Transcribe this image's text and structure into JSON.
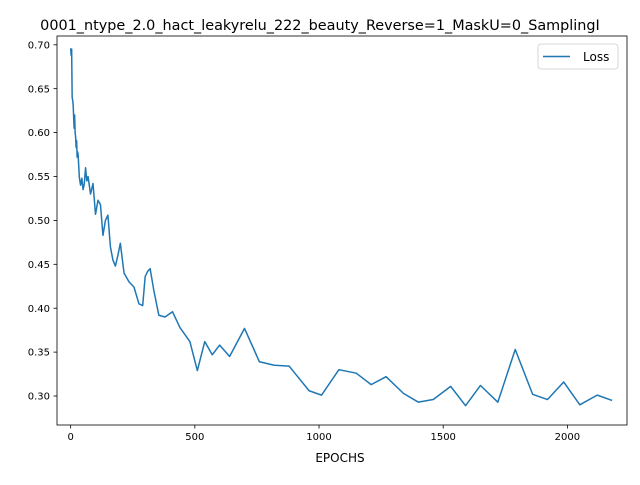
{
  "chart_data": {
    "type": "line",
    "title": "0001_ntype_2.0_hact_leakyrelu_222_beauty_Reverse=1_MaskU=0_SamplingI",
    "xlabel": "EPOCHS",
    "ylabel": "",
    "xlim": [
      -55,
      2240
    ],
    "ylim": [
      0.267,
      0.71
    ],
    "xticks": [
      0,
      500,
      1000,
      1500,
      2000
    ],
    "yticks": [
      0.3,
      0.35,
      0.4,
      0.45,
      0.5,
      0.55,
      0.6,
      0.65,
      0.7
    ],
    "xtick_labels": [
      "0",
      "500",
      "1000",
      "1500",
      "2000"
    ],
    "ytick_labels": [
      "0.30",
      "0.35",
      "0.40",
      "0.45",
      "0.50",
      "0.55",
      "0.60",
      "0.65",
      "0.70"
    ],
    "grid": false,
    "legend_position": "top-right",
    "colors": {
      "series": "#1f77b4",
      "axis": "#000000",
      "background": "#ffffff"
    },
    "series": [
      {
        "name": "Loss",
        "x": [
          0,
          2,
          4,
          6,
          8,
          10,
          12,
          14,
          16,
          18,
          20,
          22,
          24,
          26,
          28,
          30,
          35,
          40,
          45,
          50,
          55,
          60,
          65,
          70,
          75,
          80,
          90,
          100,
          110,
          120,
          130,
          140,
          150,
          160,
          170,
          180,
          190,
          200,
          215,
          235,
          255,
          275,
          290,
          300,
          310,
          320,
          335,
          355,
          380,
          410,
          440,
          480,
          510,
          540,
          570,
          600,
          640,
          700,
          760,
          820,
          880,
          960,
          1010,
          1080,
          1150,
          1210,
          1270,
          1340,
          1400,
          1460,
          1530,
          1590,
          1650,
          1720,
          1790,
          1860,
          1920,
          1985,
          2050,
          2120,
          2180
        ],
        "y": [
          0.696,
          0.688,
          0.695,
          0.64,
          0.637,
          0.632,
          0.618,
          0.605,
          0.62,
          0.6,
          0.595,
          0.583,
          0.591,
          0.572,
          0.578,
          0.575,
          0.549,
          0.54,
          0.548,
          0.535,
          0.542,
          0.56,
          0.545,
          0.55,
          0.54,
          0.53,
          0.542,
          0.507,
          0.523,
          0.518,
          0.483,
          0.5,
          0.506,
          0.47,
          0.455,
          0.448,
          0.46,
          0.474,
          0.44,
          0.43,
          0.424,
          0.405,
          0.403,
          0.436,
          0.442,
          0.445,
          0.42,
          0.392,
          0.39,
          0.396,
          0.378,
          0.362,
          0.329,
          0.362,
          0.347,
          0.358,
          0.345,
          0.377,
          0.339,
          0.335,
          0.334,
          0.306,
          0.301,
          0.33,
          0.326,
          0.313,
          0.322,
          0.303,
          0.293,
          0.296,
          0.311,
          0.289,
          0.312,
          0.293,
          0.353,
          0.302,
          0.296,
          0.316,
          0.29,
          0.301,
          0.295
        ]
      }
    ]
  }
}
